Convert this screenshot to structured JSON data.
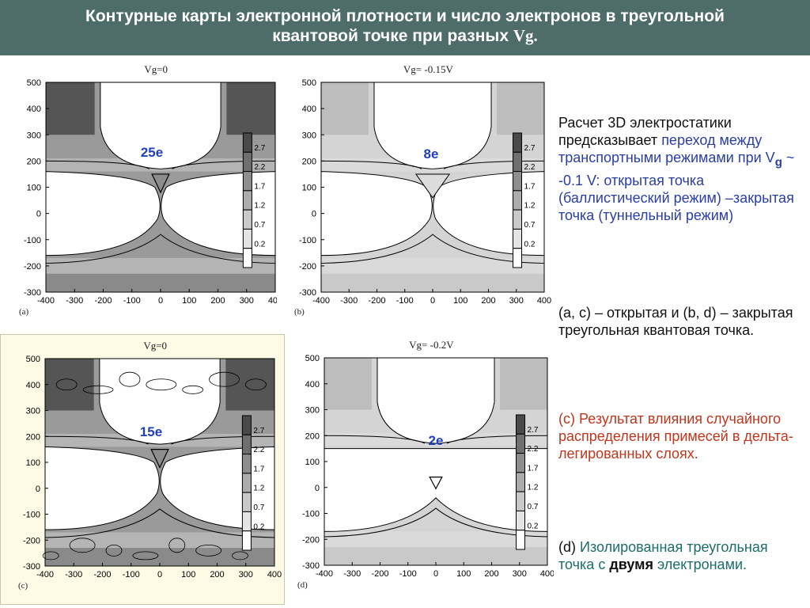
{
  "header": {
    "line1": "Контурные карты электронной плотности и число электронов в треугольной",
    "line2_text": "квантовой точке при разных ",
    "line2_vg": "Vg."
  },
  "panels": [
    {
      "id": "a",
      "title": "Vg=0",
      "letter": "(a)",
      "count": "25e",
      "bg": "#ffffff"
    },
    {
      "id": "b",
      "title": "Vg= -0.15V",
      "letter": "(b)",
      "count": "8e",
      "bg": "#ffffff"
    },
    {
      "id": "c",
      "title": "Vg=0",
      "letter": "(c)",
      "count": "15e",
      "bg": "#fdfbe6"
    },
    {
      "id": "d",
      "title": "Vg= -0.2V",
      "letter": "(d)",
      "count": "2e",
      "bg": "#ffffff"
    }
  ],
  "axes": {
    "y_ticks": [
      "500",
      "400",
      "300",
      "200",
      "100",
      "0",
      "-100",
      "-200",
      "-300"
    ],
    "x_ticks": [
      "-400",
      "-300",
      "-200",
      "-100",
      "0",
      "100",
      "200",
      "300",
      "400"
    ]
  },
  "colorbar": {
    "labels": [
      "2.7",
      "2.2",
      "1.7",
      "1.2",
      "0.7",
      "0.2"
    ]
  },
  "text": {
    "p1_a": "Расчет 3D электростатики предсказывает ",
    "p1_b": "переход между транспортными режимами при V",
    "p1_sub": "g",
    "p1_c": " ~ -0.1 V: открытая точка (баллистический режим) –закрытая точка (туннельный режим)",
    "p2": "(a, c) –  открытая и (b, d) – закрытая треугольная квантовая точка.",
    "p3": "(c) Результат влияния случайного распределения примесей в  дельта-легированных слоях.",
    "p4_a": "(d) ",
    "p4_b": "Изолированная треугольная точка с ",
    "p4_c": "двумя",
    "p4_d": " электронами."
  },
  "colors": {
    "header_bg": "#4e6d6a",
    "blue": "#2b3ea6",
    "red": "#c0351c",
    "teal": "#1c6c6c",
    "count_blue": "#1f3fbf"
  }
}
